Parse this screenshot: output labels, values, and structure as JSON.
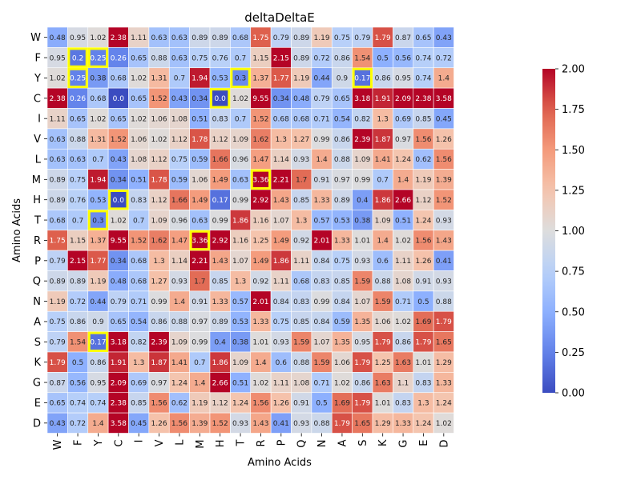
{
  "chart_data": {
    "type": "heatmap",
    "title": "deltaDeltaE",
    "xlabel": "Amino Acids",
    "ylabel": "Amino Acids",
    "x_categories": [
      "W",
      "F",
      "Y",
      "C",
      "I",
      "V",
      "L",
      "M",
      "H",
      "T",
      "R",
      "P",
      "Q",
      "N",
      "A",
      "S",
      "K",
      "G",
      "E",
      "D"
    ],
    "y_categories": [
      "W",
      "F",
      "Y",
      "C",
      "I",
      "V",
      "L",
      "M",
      "H",
      "T",
      "R",
      "P",
      "Q",
      "N",
      "A",
      "S",
      "K",
      "G",
      "E",
      "D"
    ],
    "values": [
      [
        0.48,
        0.95,
        1.02,
        2.38,
        1.11,
        0.63,
        0.63,
        0.89,
        0.89,
        0.68,
        1.75,
        0.79,
        0.89,
        1.19,
        0.75,
        0.79,
        1.79,
        0.87,
        0.65,
        0.43
      ],
      [
        0.95,
        0.2,
        0.25,
        0.26,
        0.65,
        0.88,
        0.63,
        0.75,
        0.76,
        0.7,
        1.15,
        2.15,
        0.89,
        0.72,
        0.86,
        1.54,
        0.5,
        0.56,
        0.74,
        0.72
      ],
      [
        1.02,
        0.25,
        0.38,
        0.68,
        1.02,
        1.31,
        0.7,
        1.94,
        0.53,
        0.3,
        1.37,
        1.77,
        1.19,
        0.44,
        0.9,
        0.17,
        0.86,
        0.95,
        0.74,
        1.4
      ],
      [
        2.38,
        0.26,
        0.68,
        0.0,
        0.65,
        1.52,
        0.43,
        0.34,
        0.0,
        1.02,
        9.55,
        0.34,
        0.48,
        0.79,
        0.65,
        3.18,
        1.91,
        2.09,
        2.38,
        3.58
      ],
      [
        1.11,
        0.65,
        1.02,
        0.65,
        1.02,
        1.06,
        1.08,
        0.51,
        0.83,
        0.7,
        1.52,
        0.68,
        0.68,
        0.71,
        0.54,
        0.82,
        1.3,
        0.69,
        0.85,
        0.45
      ],
      [
        0.63,
        0.88,
        1.31,
        1.52,
        1.06,
        1.02,
        1.12,
        1.78,
        1.12,
        1.09,
        1.62,
        1.3,
        1.27,
        0.99,
        0.86,
        2.39,
        1.87,
        0.97,
        1.56,
        1.26
      ],
      [
        0.63,
        0.63,
        0.7,
        0.43,
        1.08,
        1.12,
        0.75,
        0.59,
        1.66,
        0.96,
        1.47,
        1.14,
        0.93,
        1.4,
        0.88,
        1.09,
        1.41,
        1.24,
        0.62,
        1.56
      ],
      [
        0.89,
        0.75,
        1.94,
        0.34,
        0.51,
        1.78,
        0.59,
        1.06,
        1.49,
        0.63,
        3.36,
        2.21,
        1.7,
        0.91,
        0.97,
        0.99,
        0.7,
        1.4,
        1.19,
        1.39
      ],
      [
        0.89,
        0.76,
        0.53,
        0.0,
        0.83,
        1.12,
        1.66,
        1.49,
        0.17,
        0.99,
        2.92,
        1.43,
        0.85,
        1.33,
        0.89,
        0.4,
        1.86,
        2.66,
        1.12,
        1.52
      ],
      [
        0.68,
        0.7,
        0.3,
        1.02,
        0.7,
        1.09,
        0.96,
        0.63,
        0.99,
        1.86,
        1.16,
        1.07,
        1.3,
        0.57,
        0.53,
        0.38,
        1.09,
        0.51,
        1.24,
        0.93
      ],
      [
        1.75,
        1.15,
        1.37,
        9.55,
        1.52,
        1.62,
        1.47,
        3.36,
        2.92,
        1.16,
        1.25,
        1.49,
        0.92,
        2.01,
        1.33,
        1.01,
        1.4,
        1.02,
        1.56,
        1.43
      ],
      [
        0.79,
        2.15,
        1.77,
        0.34,
        0.68,
        1.3,
        1.14,
        2.21,
        1.43,
        1.07,
        1.49,
        1.86,
        1.11,
        0.84,
        0.75,
        0.93,
        0.6,
        1.11,
        1.26,
        0.41
      ],
      [
        0.89,
        0.89,
        1.19,
        0.48,
        0.68,
        1.27,
        0.93,
        1.7,
        0.85,
        1.3,
        0.92,
        1.11,
        0.68,
        0.83,
        0.85,
        1.59,
        0.88,
        1.08,
        0.91,
        0.93
      ],
      [
        1.19,
        0.72,
        0.44,
        0.79,
        0.71,
        0.99,
        1.4,
        0.91,
        1.33,
        0.57,
        2.01,
        0.84,
        0.83,
        0.99,
        0.84,
        1.07,
        1.59,
        0.71,
        0.5,
        0.88
      ],
      [
        0.75,
        0.86,
        0.9,
        0.65,
        0.54,
        0.86,
        0.88,
        0.97,
        0.89,
        0.53,
        1.33,
        0.75,
        0.85,
        0.84,
        0.59,
        1.35,
        1.06,
        1.02,
        1.69,
        1.79
      ],
      [
        0.79,
        1.54,
        0.17,
        3.18,
        0.82,
        2.39,
        1.09,
        0.99,
        0.4,
        0.38,
        1.01,
        0.93,
        1.59,
        1.07,
        1.35,
        0.95,
        1.79,
        0.86,
        1.79,
        1.65
      ],
      [
        1.79,
        0.5,
        0.86,
        1.91,
        1.3,
        1.87,
        1.41,
        0.7,
        1.86,
        1.09,
        1.4,
        0.6,
        0.88,
        1.59,
        1.06,
        1.79,
        1.25,
        1.63,
        1.01,
        1.29
      ],
      [
        0.87,
        0.56,
        0.95,
        2.09,
        0.69,
        0.97,
        1.24,
        1.4,
        2.66,
        0.51,
        1.02,
        1.11,
        1.08,
        0.71,
        1.02,
        0.86,
        1.63,
        1.1,
        0.83,
        1.33
      ],
      [
        0.65,
        0.74,
        0.74,
        2.38,
        0.85,
        1.56,
        0.62,
        1.19,
        1.12,
        1.24,
        1.56,
        1.26,
        0.91,
        0.5,
        1.69,
        1.79,
        1.01,
        0.83,
        1.3,
        1.24
      ],
      [
        0.43,
        0.72,
        1.4,
        3.58,
        0.45,
        1.26,
        1.56,
        1.39,
        1.52,
        0.93,
        1.43,
        0.41,
        0.93,
        0.88,
        1.79,
        1.65,
        1.29,
        1.33,
        1.24,
        1.02
      ]
    ],
    "highlighted_cells": [
      [
        1,
        1
      ],
      [
        1,
        2
      ],
      [
        2,
        1
      ],
      [
        2,
        15
      ],
      [
        2,
        9
      ],
      [
        3,
        8
      ],
      [
        7,
        10
      ],
      [
        8,
        3
      ],
      [
        9,
        2
      ],
      [
        10,
        7
      ],
      [
        15,
        2
      ]
    ],
    "colormap": "coolwarm",
    "vmin": 0.0,
    "vmax": 2.0,
    "colorbar_ticks": [
      "0.00",
      "0.25",
      "0.50",
      "0.75",
      "1.00",
      "1.25",
      "1.50",
      "1.75",
      "2.00"
    ],
    "highlight_color": "#ffff00",
    "grid_line_color": "#ffffff"
  }
}
